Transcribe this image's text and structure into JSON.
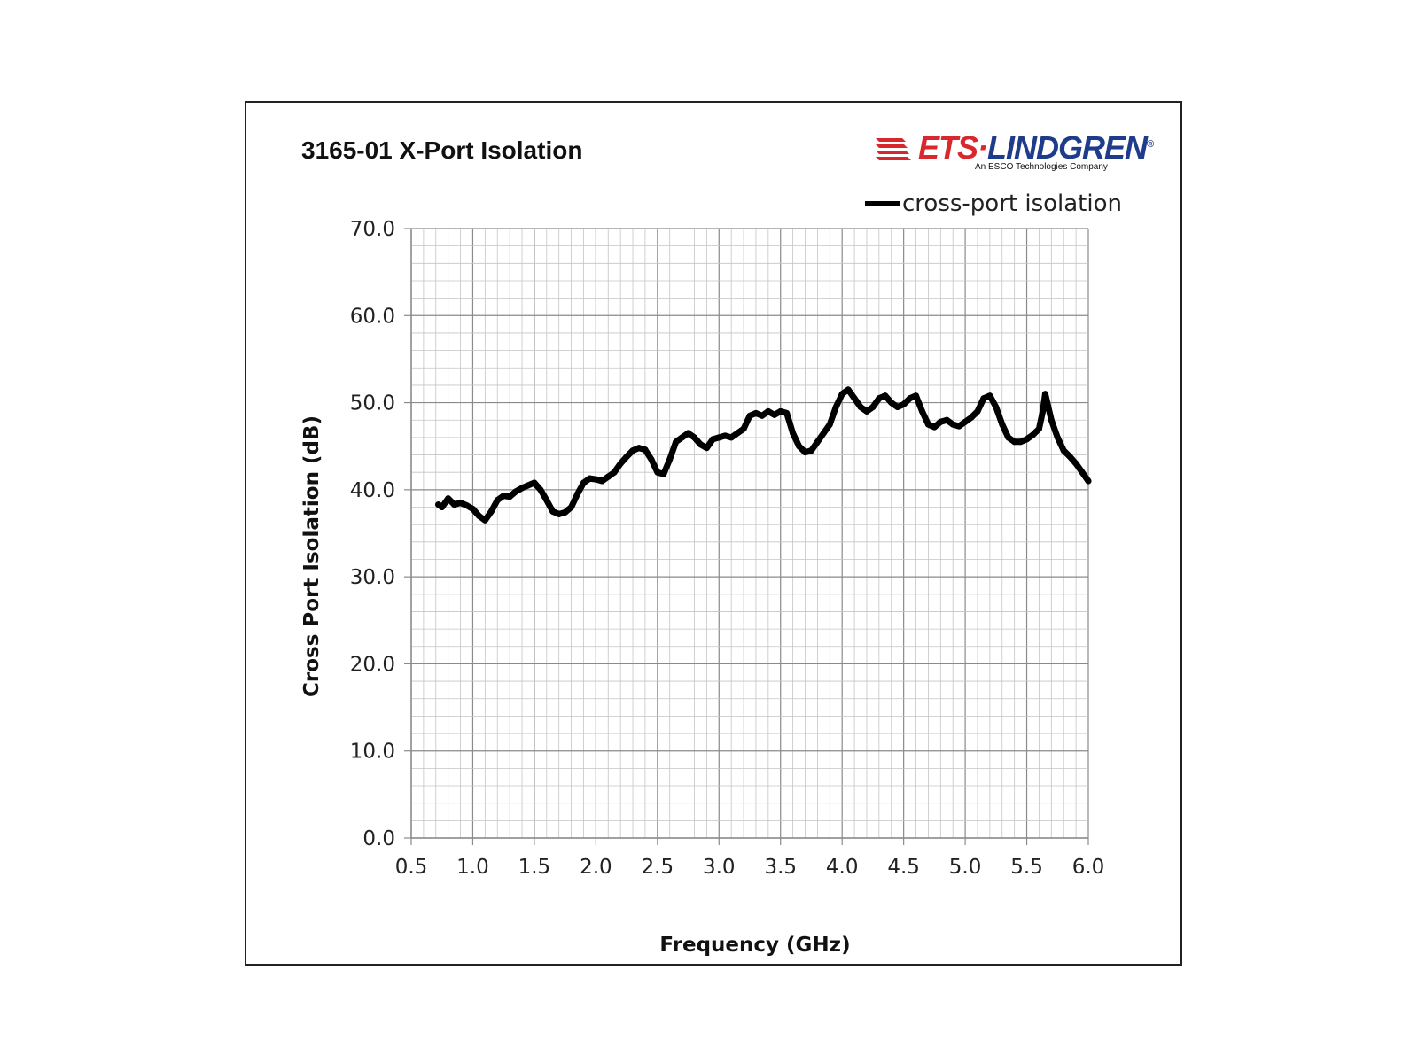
{
  "chart_data": {
    "type": "line",
    "title": "3165-01 X-Port Isolation",
    "xlabel": "Frequency (GHz)",
    "ylabel": "Cross Port Isolation (dB)",
    "xlim": [
      0.5,
      6.0
    ],
    "ylim": [
      0,
      70
    ],
    "xticks": [
      "0.5",
      "1.0",
      "1.5",
      "2.0",
      "2.5",
      "3.0",
      "3.5",
      "4.0",
      "4.5",
      "5.0",
      "5.5",
      "6.0"
    ],
    "yticks": [
      "0.0",
      "10.0",
      "20.0",
      "30.0",
      "40.0",
      "50.0",
      "60.0",
      "70.0"
    ],
    "grid": true,
    "legend_position": "top-right",
    "series": [
      {
        "name": "cross-port isolation",
        "color": "#000000",
        "x": [
          0.72,
          0.75,
          0.8,
          0.85,
          0.9,
          0.95,
          1.0,
          1.05,
          1.1,
          1.15,
          1.2,
          1.25,
          1.3,
          1.35,
          1.4,
          1.45,
          1.5,
          1.55,
          1.6,
          1.65,
          1.7,
          1.75,
          1.8,
          1.85,
          1.9,
          1.95,
          2.0,
          2.05,
          2.1,
          2.15,
          2.2,
          2.25,
          2.3,
          2.35,
          2.4,
          2.45,
          2.5,
          2.55,
          2.6,
          2.65,
          2.7,
          2.75,
          2.8,
          2.85,
          2.9,
          2.95,
          3.0,
          3.05,
          3.1,
          3.15,
          3.2,
          3.25,
          3.3,
          3.35,
          3.4,
          3.45,
          3.5,
          3.55,
          3.6,
          3.65,
          3.7,
          3.75,
          3.8,
          3.85,
          3.9,
          3.95,
          4.0,
          4.05,
          4.1,
          4.15,
          4.2,
          4.25,
          4.3,
          4.35,
          4.4,
          4.45,
          4.5,
          4.55,
          4.6,
          4.65,
          4.7,
          4.75,
          4.8,
          4.85,
          4.9,
          4.95,
          5.0,
          5.05,
          5.1,
          5.15,
          5.2,
          5.25,
          5.3,
          5.35,
          5.4,
          5.45,
          5.5,
          5.55,
          5.6,
          5.63,
          5.65,
          5.7,
          5.75,
          5.8,
          5.85,
          5.9,
          5.95,
          6.0
        ],
        "values": [
          38.3,
          38.0,
          39.0,
          38.3,
          38.5,
          38.2,
          37.8,
          37.0,
          36.5,
          37.5,
          38.8,
          39.3,
          39.2,
          39.8,
          40.2,
          40.5,
          40.8,
          40.0,
          38.8,
          37.5,
          37.2,
          37.4,
          38.0,
          39.5,
          40.8,
          41.3,
          41.2,
          41.0,
          41.5,
          42.0,
          43.0,
          43.8,
          44.5,
          44.8,
          44.6,
          43.5,
          42.0,
          41.8,
          43.5,
          45.5,
          46.0,
          46.5,
          46.0,
          45.2,
          44.8,
          45.8,
          46.0,
          46.2,
          46.0,
          46.5,
          47.0,
          48.5,
          48.8,
          48.5,
          49.0,
          48.6,
          49.0,
          48.8,
          46.5,
          45.0,
          44.3,
          44.5,
          45.5,
          46.5,
          47.5,
          49.5,
          51.0,
          51.5,
          50.5,
          49.5,
          49.0,
          49.5,
          50.5,
          50.8,
          50.0,
          49.5,
          49.8,
          50.5,
          50.8,
          49.0,
          47.5,
          47.2,
          47.8,
          48.0,
          47.5,
          47.3,
          47.8,
          48.3,
          49.0,
          50.5,
          50.8,
          49.5,
          47.5,
          46.0,
          45.5,
          45.5,
          45.8,
          46.3,
          47.0,
          49.0,
          51.0,
          48.0,
          46.0,
          44.5,
          43.8,
          43.0,
          42.0,
          41.0
        ]
      }
    ]
  },
  "logo": {
    "text": "ETS·LINDGREN",
    "registered": "®",
    "subtitle": "An ESCO Technologies Company",
    "colors": {
      "stripes": "#d9272e",
      "ets": "#d9272e",
      "lindgren": "#1f3c8c"
    }
  }
}
